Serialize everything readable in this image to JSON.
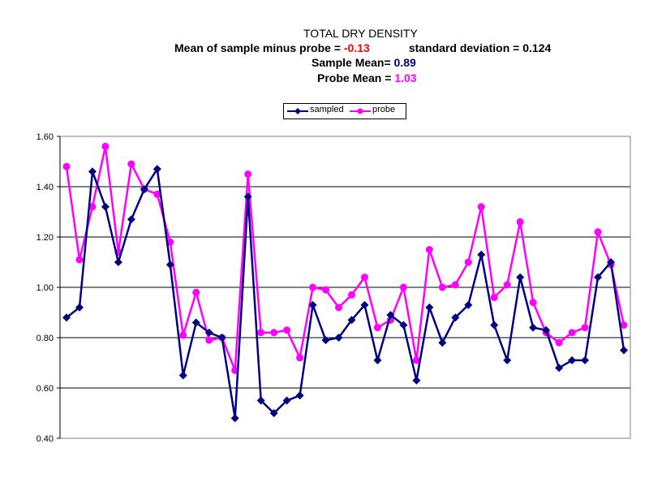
{
  "chart_data": {
    "type": "line",
    "title": "TOTAL  DRY DENSITY",
    "subtitle": {
      "mean_diff_label": "Mean of sample minus probe = ",
      "mean_diff_value": "-0.13",
      "stdev_label": "standard deviation = 0.124",
      "sample_mean_label": "Sample Mean= ",
      "sample_mean_value": "0.89",
      "probe_mean_label": "Probe Mean = ",
      "probe_mean_value": "1.03"
    },
    "xlabel": "",
    "ylabel": "",
    "ylim": [
      0.4,
      1.6
    ],
    "yticks": [
      "0.40",
      "0.60",
      "0.80",
      "1.00",
      "1.20",
      "1.40",
      "1.60"
    ],
    "grid": true,
    "legend_position": "top-center",
    "series": [
      {
        "name": "sampled",
        "color": "#000080",
        "marker": "diamond",
        "values": [
          0.88,
          0.92,
          1.46,
          1.32,
          1.1,
          1.27,
          1.39,
          1.47,
          1.09,
          0.65,
          0.86,
          0.82,
          0.8,
          0.48,
          1.36,
          0.55,
          0.5,
          0.55,
          0.57,
          0.93,
          0.79,
          0.8,
          0.87,
          0.93,
          0.71,
          0.89,
          0.85,
          0.63,
          0.92,
          0.78,
          0.88,
          0.93,
          1.13,
          0.85,
          0.71,
          1.04,
          0.84,
          0.83,
          0.68,
          0.71,
          0.71,
          1.04,
          1.1,
          0.75
        ]
      },
      {
        "name": "probe",
        "color": "#ff00ff",
        "marker": "circle",
        "values": [
          1.48,
          1.11,
          1.32,
          1.56,
          1.14,
          1.49,
          1.39,
          1.37,
          1.18,
          0.81,
          0.98,
          0.79,
          0.8,
          0.67,
          1.45,
          0.82,
          0.82,
          0.83,
          0.72,
          1.0,
          0.99,
          0.92,
          0.97,
          1.04,
          0.84,
          0.87,
          1.0,
          0.71,
          1.15,
          1.0,
          1.01,
          1.1,
          1.32,
          0.96,
          1.01,
          1.26,
          0.94,
          0.82,
          0.78,
          0.82,
          0.84,
          1.22,
          1.09,
          0.85
        ]
      }
    ]
  }
}
